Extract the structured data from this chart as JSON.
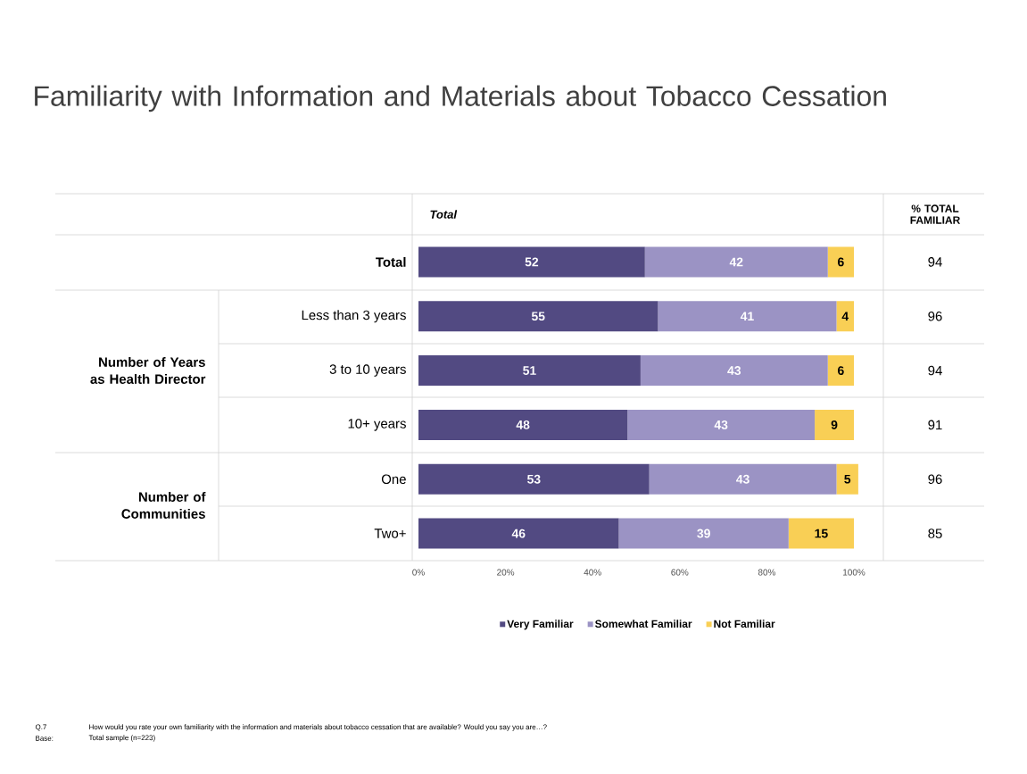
{
  "chart_data": {
    "type": "bar",
    "orientation": "horizontal",
    "stacked": true,
    "title": "Familiarity with Information and Materials about Tobacco Cessation",
    "subtitle": "Total",
    "categories": [
      "Total",
      "Less than 3 years",
      "3 to 10 years",
      "10+ years",
      "One",
      "Two+"
    ],
    "series": [
      {
        "name": "Very Familiar",
        "color": "#524a82",
        "values": [
          52,
          55,
          51,
          48,
          53,
          46
        ]
      },
      {
        "name": "Somewhat Familiar",
        "color": "#9b93c4",
        "values": [
          42,
          41,
          43,
          43,
          43,
          39
        ]
      },
      {
        "name": "Not Familiar",
        "color": "#f9cf55",
        "values": [
          6,
          4,
          6,
          9,
          5,
          15
        ]
      }
    ],
    "xlim": [
      0,
      101
    ],
    "xticks": [
      {
        "value": 0,
        "label": "0%"
      },
      {
        "value": 20,
        "label": "20%"
      },
      {
        "value": 40,
        "label": "40%"
      },
      {
        "value": 60,
        "label": "60%"
      },
      {
        "value": 80,
        "label": "80%"
      },
      {
        "value": 100,
        "label": "100%"
      }
    ],
    "data_labels": true,
    "legend": "bottom",
    "annotations": [
      "Number of Years as Health Director",
      "Number of Communities",
      "% TOTAL FAMILIAR",
      "Q.7",
      "How would you rate your own familiarity with the information and materials about tobacco cessation that are available?  Would you say you are…?",
      "Base:",
      "Total sample (n=223)",
      "94",
      "96",
      "94",
      "91",
      "96",
      "85"
    ]
  }
}
